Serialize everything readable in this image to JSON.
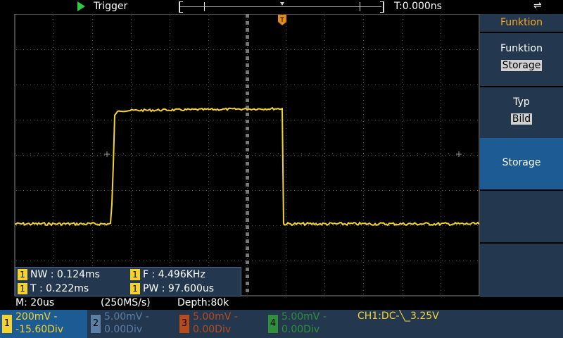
{
  "top": {
    "trigger_label": "Trigger",
    "time_offset": "T:0.000ns",
    "usb_glyph": "⇌"
  },
  "trigger_marker": "T",
  "menu": {
    "header": "Funktion",
    "items": [
      {
        "title": "Funktion",
        "value": "Storage"
      },
      {
        "title": "Typ",
        "value": "Bild"
      },
      {
        "title": "Storage",
        "value": ""
      },
      {
        "title": "",
        "value": ""
      },
      {
        "title": "",
        "value": ""
      }
    ]
  },
  "measurements": {
    "badge": "1",
    "nw": "NW : 0.124ms",
    "f": "F : 4.496KHz",
    "t": "T : 0.222ms",
    "pw": "PW : 97.600us"
  },
  "status": {
    "timebase": "M: 20us",
    "sample_rate": "(250MS/s)",
    "depth": "Depth:80k"
  },
  "channels": [
    {
      "num": "1",
      "scale": "200mV -",
      "offset": "-15.60Div",
      "color": "#f5d22c"
    },
    {
      "num": "2",
      "scale": "5.00mV -",
      "offset": "0.00Div",
      "color": "#5b7fa6"
    },
    {
      "num": "3",
      "scale": "5.00mV -",
      "offset": "0.00Div",
      "color": "#b84a1c"
    },
    {
      "num": "4",
      "scale": "5.00mV -",
      "offset": "0.00Div",
      "color": "#2f8f3a"
    }
  ],
  "trigger_status": "CH1:DC-╲_3.25V",
  "colors": {
    "trace": "#f5d22c",
    "menu_bg": "#23384f",
    "menu_selected": "#1c5b94",
    "accent": "#f5a623"
  }
}
